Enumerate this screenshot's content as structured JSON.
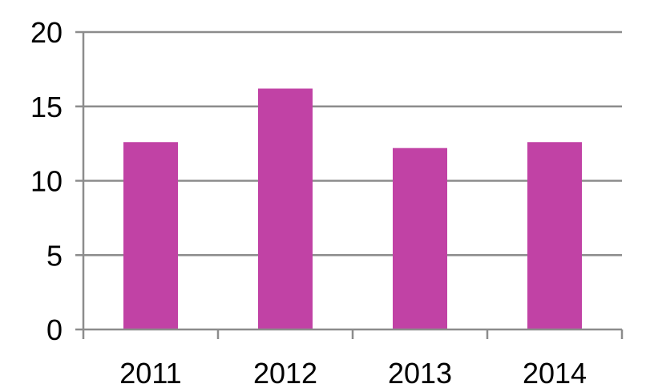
{
  "chart_data": {
    "type": "bar",
    "categories": [
      "2011",
      "2012",
      "2013",
      "2014"
    ],
    "values": [
      12.6,
      16.2,
      12.2,
      12.6
    ],
    "title": "",
    "xlabel": "",
    "ylabel": "",
    "ylim": [
      0,
      20
    ],
    "yticks": [
      0,
      5,
      10,
      15,
      20
    ],
    "ytick_labels": [
      "0",
      "5",
      "10",
      "15",
      "20"
    ],
    "grid": true,
    "legend": "none",
    "colors": {
      "bar": "#c142a5",
      "grid": "#8c8c8c",
      "axis": "#8c8c8c",
      "text": "#000000",
      "background": "#ffffff"
    }
  }
}
